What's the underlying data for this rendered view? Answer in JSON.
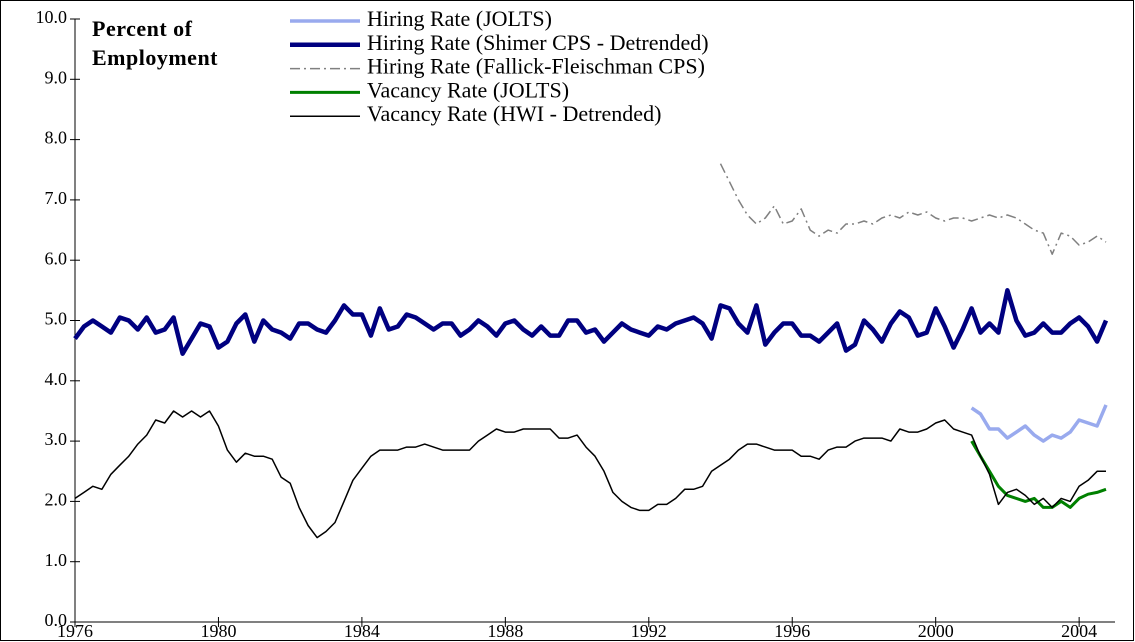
{
  "chart_data": {
    "type": "line",
    "ylabel": "Percent of Employment",
    "xlim": [
      1976,
      2005
    ],
    "xticks": [
      1976,
      1980,
      1984,
      1988,
      1992,
      1996,
      2000,
      2004
    ],
    "ylim": [
      0,
      10
    ],
    "yticks": [
      {
        "value": 0,
        "label": "0.0"
      },
      {
        "value": 1,
        "label": "1.0"
      },
      {
        "value": 2,
        "label": "2.0"
      },
      {
        "value": 3,
        "label": "3.0"
      },
      {
        "value": 4,
        "label": "4.0"
      },
      {
        "value": 5,
        "label": "5.0"
      },
      {
        "value": 6,
        "label": "6.0"
      },
      {
        "value": 7,
        "label": "7.0"
      },
      {
        "value": 8,
        "label": "8.0"
      },
      {
        "value": 9,
        "label": "9.0"
      },
      {
        "value": 10,
        "label": "10.0"
      }
    ],
    "legend": "top",
    "x": [
      1976,
      1976.25,
      1976.5,
      1976.75,
      1977,
      1977.25,
      1977.5,
      1977.75,
      1978,
      1978.25,
      1978.5,
      1978.75,
      1979,
      1979.25,
      1979.5,
      1979.75,
      1980,
      1980.25,
      1980.5,
      1980.75,
      1981,
      1981.25,
      1981.5,
      1981.75,
      1982,
      1982.25,
      1982.5,
      1982.75,
      1983,
      1983.25,
      1983.5,
      1983.75,
      1984,
      1984.25,
      1984.5,
      1984.75,
      1985,
      1985.25,
      1985.5,
      1985.75,
      1986,
      1986.25,
      1986.5,
      1986.75,
      1987,
      1987.25,
      1987.5,
      1987.75,
      1988,
      1988.25,
      1988.5,
      1988.75,
      1989,
      1989.25,
      1989.5,
      1989.75,
      1990,
      1990.25,
      1990.5,
      1990.75,
      1991,
      1991.25,
      1991.5,
      1991.75,
      1992,
      1992.25,
      1992.5,
      1992.75,
      1993,
      1993.25,
      1993.5,
      1993.75,
      1994,
      1994.25,
      1994.5,
      1994.75,
      1995,
      1995.25,
      1995.5,
      1995.75,
      1996,
      1996.25,
      1996.5,
      1996.75,
      1997,
      1997.25,
      1997.5,
      1997.75,
      1998,
      1998.25,
      1998.5,
      1998.75,
      1999,
      1999.25,
      1999.5,
      1999.75,
      2000,
      2000.25,
      2000.5,
      2000.75,
      2001,
      2001.25,
      2001.5,
      2001.75,
      2002,
      2002.25,
      2002.5,
      2002.75,
      2003,
      2003.25,
      2003.5,
      2003.75,
      2004,
      2004.25,
      2004.5,
      2004.75
    ],
    "series": [
      {
        "name": "Hiring Rate (JOLTS)",
        "color": "#99aaee",
        "width": 3.5,
        "dash": "solid",
        "x": [
          2001,
          2001.25,
          2001.5,
          2001.75,
          2002,
          2002.25,
          2002.5,
          2002.75,
          2003,
          2003.25,
          2003.5,
          2003.75,
          2004,
          2004.25,
          2004.5,
          2004.75
        ],
        "values": [
          3.55,
          3.45,
          3.2,
          3.2,
          3.05,
          3.15,
          3.25,
          3.1,
          3.0,
          3.1,
          3.05,
          3.15,
          3.35,
          3.3,
          3.25,
          3.6
        ]
      },
      {
        "name": "Hiring Rate (Shimer CPS - Detrended)",
        "color": "#000080",
        "width": 4.5,
        "dash": "solid",
        "values": [
          4.7,
          4.9,
          5.0,
          4.9,
          4.8,
          5.05,
          5.0,
          4.85,
          5.05,
          4.8,
          4.85,
          5.05,
          4.45,
          4.7,
          4.95,
          4.9,
          4.55,
          4.65,
          4.95,
          5.1,
          4.65,
          5.0,
          4.85,
          4.8,
          4.7,
          4.95,
          4.95,
          4.85,
          4.8,
          5.0,
          5.25,
          5.1,
          5.1,
          4.75,
          5.2,
          4.85,
          4.9,
          5.1,
          5.05,
          4.95,
          4.85,
          4.95,
          4.95,
          4.75,
          4.85,
          5.0,
          4.9,
          4.75,
          4.95,
          5.0,
          4.85,
          4.75,
          4.9,
          4.75,
          4.75,
          5.0,
          5.0,
          4.8,
          4.85,
          4.65,
          4.8,
          4.95,
          4.85,
          4.8,
          4.75,
          4.9,
          4.85,
          4.95,
          5.0,
          5.05,
          4.95,
          4.7,
          5.25,
          5.2,
          4.95,
          4.8,
          5.25,
          4.6,
          4.8,
          4.95,
          4.95,
          4.75,
          4.75,
          4.65,
          4.8,
          4.95,
          4.5,
          4.6,
          5.0,
          4.85,
          4.65,
          4.95,
          5.15,
          5.05,
          4.75,
          4.8,
          5.2,
          4.9,
          4.55,
          4.85,
          5.2,
          4.8,
          4.95,
          4.8,
          5.5,
          5.0,
          4.75,
          4.8,
          4.95,
          4.8,
          4.8,
          4.95,
          5.05,
          4.9,
          4.65,
          5.0
        ]
      },
      {
        "name": "Hiring Rate (Fallick-Fleischman CPS)",
        "color": "#808080",
        "width": 1.5,
        "dash": "dashdot",
        "x": [
          1994,
          1994.25,
          1994.5,
          1994.75,
          1995,
          1995.25,
          1995.5,
          1995.75,
          1996,
          1996.25,
          1996.5,
          1996.75,
          1997,
          1997.25,
          1997.5,
          1997.75,
          1998,
          1998.25,
          1998.5,
          1998.75,
          1999,
          1999.25,
          1999.5,
          1999.75,
          2000,
          2000.25,
          2000.5,
          2000.75,
          2001,
          2001.25,
          2001.5,
          2001.75,
          2002,
          2002.25,
          2002.5,
          2002.75,
          2003,
          2003.25,
          2003.5,
          2003.75,
          2004,
          2004.25,
          2004.5,
          2004.75
        ],
        "values": [
          7.6,
          7.3,
          7.0,
          6.75,
          6.6,
          6.7,
          6.9,
          6.6,
          6.65,
          6.85,
          6.5,
          6.4,
          6.5,
          6.45,
          6.6,
          6.6,
          6.65,
          6.6,
          6.7,
          6.75,
          6.7,
          6.8,
          6.75,
          6.8,
          6.7,
          6.65,
          6.7,
          6.7,
          6.65,
          6.7,
          6.75,
          6.7,
          6.75,
          6.7,
          6.6,
          6.5,
          6.45,
          6.1,
          6.45,
          6.4,
          6.25,
          6.3,
          6.4,
          6.3
        ]
      },
      {
        "name": "Vacancy Rate (JOLTS)",
        "color": "#008000",
        "width": 3,
        "dash": "solid",
        "x": [
          2001,
          2001.25,
          2001.5,
          2001.75,
          2002,
          2002.25,
          2002.5,
          2002.75,
          2003,
          2003.25,
          2003.5,
          2003.75,
          2004,
          2004.25,
          2004.5,
          2004.75
        ],
        "values": [
          3.0,
          2.75,
          2.5,
          2.25,
          2.1,
          2.05,
          2.0,
          2.05,
          1.9,
          1.9,
          2.0,
          1.9,
          2.05,
          2.12,
          2.15,
          2.2
        ]
      },
      {
        "name": "Vacancy Rate (HWI - Detrended)",
        "color": "#000000",
        "width": 1.5,
        "dash": "solid",
        "values": [
          2.05,
          2.15,
          2.25,
          2.2,
          2.45,
          2.6,
          2.75,
          2.95,
          3.1,
          3.35,
          3.3,
          3.5,
          3.4,
          3.5,
          3.4,
          3.5,
          3.25,
          2.85,
          2.65,
          2.8,
          2.75,
          2.75,
          2.7,
          2.4,
          2.3,
          1.9,
          1.6,
          1.4,
          1.5,
          1.65,
          2.0,
          2.35,
          2.55,
          2.75,
          2.85,
          2.85,
          2.85,
          2.9,
          2.9,
          2.95,
          2.9,
          2.85,
          2.85,
          2.85,
          2.85,
          3.0,
          3.1,
          3.2,
          3.15,
          3.15,
          3.2,
          3.2,
          3.2,
          3.2,
          3.05,
          3.05,
          3.1,
          2.9,
          2.75,
          2.5,
          2.15,
          2.0,
          1.9,
          1.85,
          1.85,
          1.95,
          1.95,
          2.05,
          2.2,
          2.2,
          2.25,
          2.5,
          2.6,
          2.7,
          2.85,
          2.95,
          2.95,
          2.9,
          2.85,
          2.85,
          2.85,
          2.75,
          2.75,
          2.7,
          2.85,
          2.9,
          2.9,
          3.0,
          3.05,
          3.05,
          3.05,
          3.0,
          3.2,
          3.15,
          3.15,
          3.2,
          3.3,
          3.35,
          3.2,
          3.15,
          3.1,
          2.75,
          2.45,
          1.95,
          2.15,
          2.2,
          2.1,
          1.95,
          2.05,
          1.9,
          2.05,
          2.0,
          2.25,
          2.35,
          2.5,
          2.5
        ]
      }
    ]
  }
}
